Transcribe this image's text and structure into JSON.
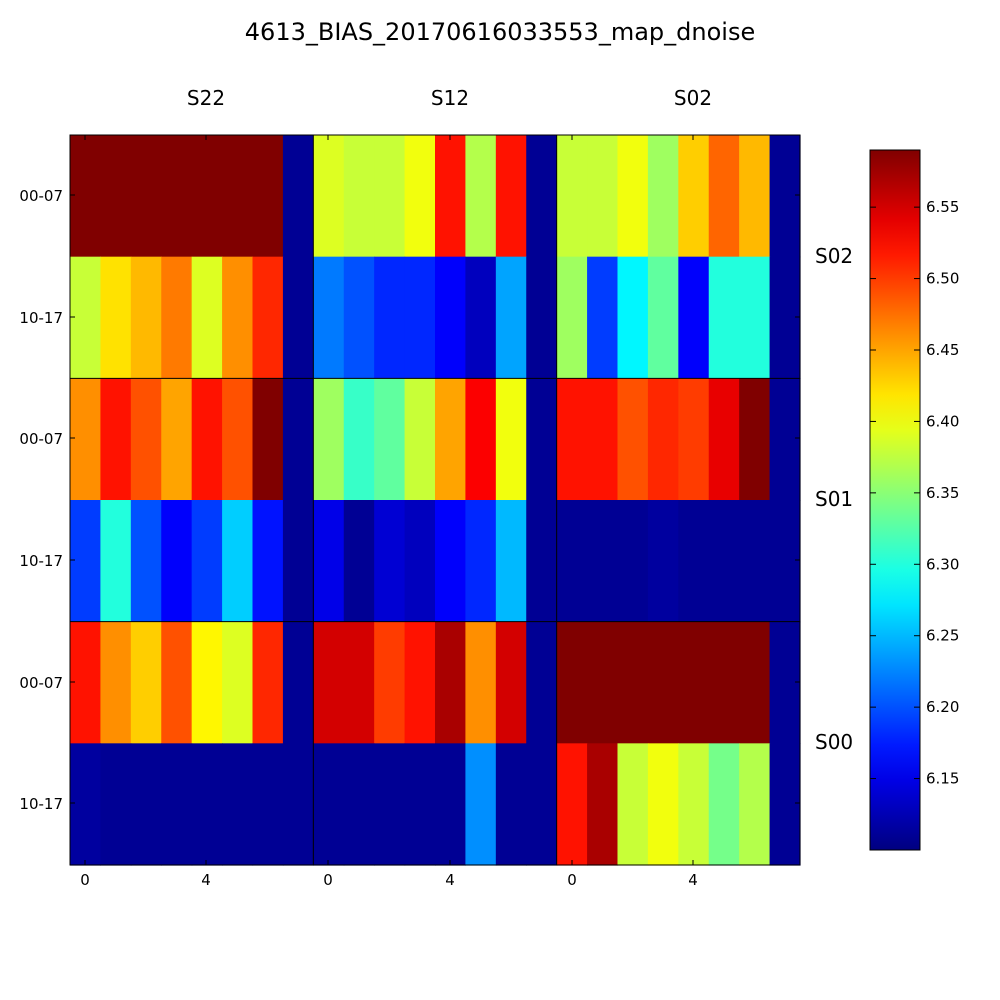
{
  "chart_data": {
    "type": "heatmap",
    "title": "4613_BIAS_20170616033553_map_dnoise",
    "column_labels": [
      "S22",
      "S12",
      "S02"
    ],
    "row_labels": [
      "S02",
      "S01",
      "S00"
    ],
    "row_tick_labels": [
      "00-07",
      "10-17"
    ],
    "x_tick_labels": [
      "0",
      "4"
    ],
    "colormap": "jet",
    "colorbar": {
      "min": 6.1,
      "max": 6.59,
      "ticks": [
        "6.15",
        "6.20",
        "6.25",
        "6.30",
        "6.35",
        "6.40",
        "6.45",
        "6.50",
        "6.55"
      ]
    },
    "series": [
      {
        "row": "S02",
        "col": "S22",
        "values": [
          [
            6.59,
            6.59,
            6.59,
            6.59,
            6.59,
            6.59,
            6.59,
            6.11
          ],
          [
            6.38,
            6.42,
            6.44,
            6.47,
            6.39,
            6.46,
            6.51,
            6.11
          ]
        ]
      },
      {
        "row": "S02",
        "col": "S12",
        "values": [
          [
            6.39,
            6.38,
            6.38,
            6.4,
            6.52,
            6.37,
            6.52,
            6.11
          ],
          [
            6.22,
            6.2,
            6.18,
            6.18,
            6.16,
            6.13,
            6.24,
            6.11
          ]
        ]
      },
      {
        "row": "S02",
        "col": "S02",
        "values": [
          [
            6.38,
            6.38,
            6.4,
            6.36,
            6.43,
            6.48,
            6.44,
            6.11
          ],
          [
            6.36,
            6.19,
            6.28,
            6.33,
            6.16,
            6.3,
            6.3,
            6.11
          ]
        ]
      },
      {
        "row": "S01",
        "col": "S22",
        "values": [
          [
            6.46,
            6.52,
            6.49,
            6.45,
            6.52,
            6.49,
            6.59,
            6.11
          ],
          [
            6.19,
            6.3,
            6.2,
            6.16,
            6.19,
            6.26,
            6.17,
            6.11
          ]
        ]
      },
      {
        "row": "S01",
        "col": "S12",
        "values": [
          [
            6.36,
            6.31,
            6.33,
            6.38,
            6.45,
            6.53,
            6.4,
            6.11
          ],
          [
            6.15,
            6.11,
            6.14,
            6.13,
            6.16,
            6.18,
            6.25,
            6.11
          ]
        ]
      },
      {
        "row": "S01",
        "col": "S02",
        "values": [
          [
            6.52,
            6.52,
            6.49,
            6.51,
            6.5,
            6.54,
            6.59,
            6.11
          ],
          [
            6.11,
            6.11,
            6.11,
            6.115,
            6.11,
            6.11,
            6.11,
            6.11
          ]
        ]
      },
      {
        "row": "S00",
        "col": "S22",
        "values": [
          [
            6.52,
            6.46,
            6.43,
            6.49,
            6.41,
            6.39,
            6.51,
            6.11
          ],
          [
            6.115,
            6.11,
            6.11,
            6.11,
            6.11,
            6.11,
            6.11,
            6.11
          ]
        ]
      },
      {
        "row": "S00",
        "col": "S12",
        "values": [
          [
            6.55,
            6.55,
            6.5,
            6.52,
            6.57,
            6.46,
            6.55,
            6.11
          ],
          [
            6.11,
            6.11,
            6.11,
            6.11,
            6.11,
            6.23,
            6.11,
            6.11
          ]
        ]
      },
      {
        "row": "S00",
        "col": "S02",
        "values": [
          [
            6.59,
            6.59,
            6.59,
            6.59,
            6.59,
            6.59,
            6.59,
            6.11
          ],
          [
            6.52,
            6.57,
            6.38,
            6.4,
            6.38,
            6.34,
            6.37,
            6.11
          ]
        ]
      }
    ]
  }
}
